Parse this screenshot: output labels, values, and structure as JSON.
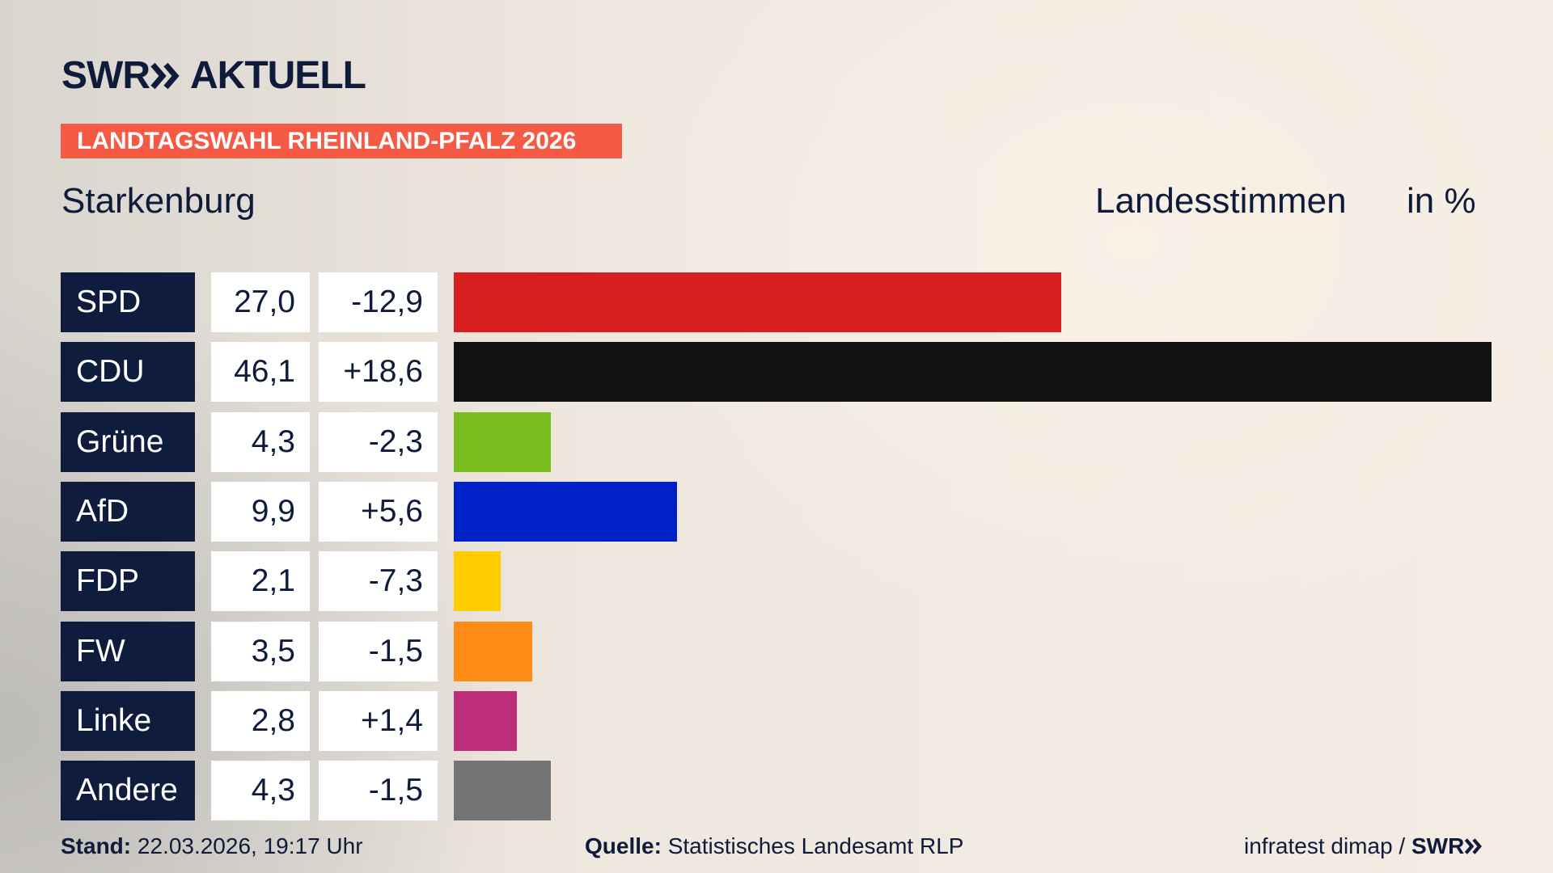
{
  "brand": {
    "left": "SWR",
    "right": "AKTUELL"
  },
  "chart_data": {
    "type": "bar",
    "orientation": "horizontal",
    "title": "LANDTAGSWAHL RHEINLAND-PFALZ 2026",
    "subtitle": "Starkenburg",
    "value_header": "Landesstimmen",
    "unit": "in %",
    "categories": [
      "SPD",
      "CDU",
      "Grüne",
      "AfD",
      "FDP",
      "FW",
      "Linke",
      "Andere"
    ],
    "values": [
      27.0,
      46.1,
      4.3,
      9.9,
      2.1,
      3.5,
      2.8,
      4.3
    ],
    "value_labels": [
      "27,0",
      "46,1",
      "4,3",
      "9,9",
      "2,1",
      "3,5",
      "2,8",
      "4,3"
    ],
    "changes": [
      -12.9,
      18.6,
      -2.3,
      5.6,
      -7.3,
      -1.5,
      1.4,
      -1.5
    ],
    "change_labels": [
      "-12,9",
      "+18,6",
      "-2,3",
      "+5,6",
      "-7,3",
      "-1,5",
      "+1,4",
      "-1,5"
    ],
    "colors": [
      "#d71f1f",
      "#121212",
      "#78bc1e",
      "#0022c8",
      "#ffcc00",
      "#ff8c16",
      "#bc2e79",
      "#747474"
    ],
    "xlim": [
      0,
      46.1
    ]
  },
  "footer": {
    "stand_label": "Stand:",
    "stand": "22.03.2026, 19:17 Uhr",
    "source_label": "Quelle:",
    "source": "Statistisches Landesamt RLP",
    "credit": "infratest dimap /",
    "credit_brand": "SWR"
  }
}
